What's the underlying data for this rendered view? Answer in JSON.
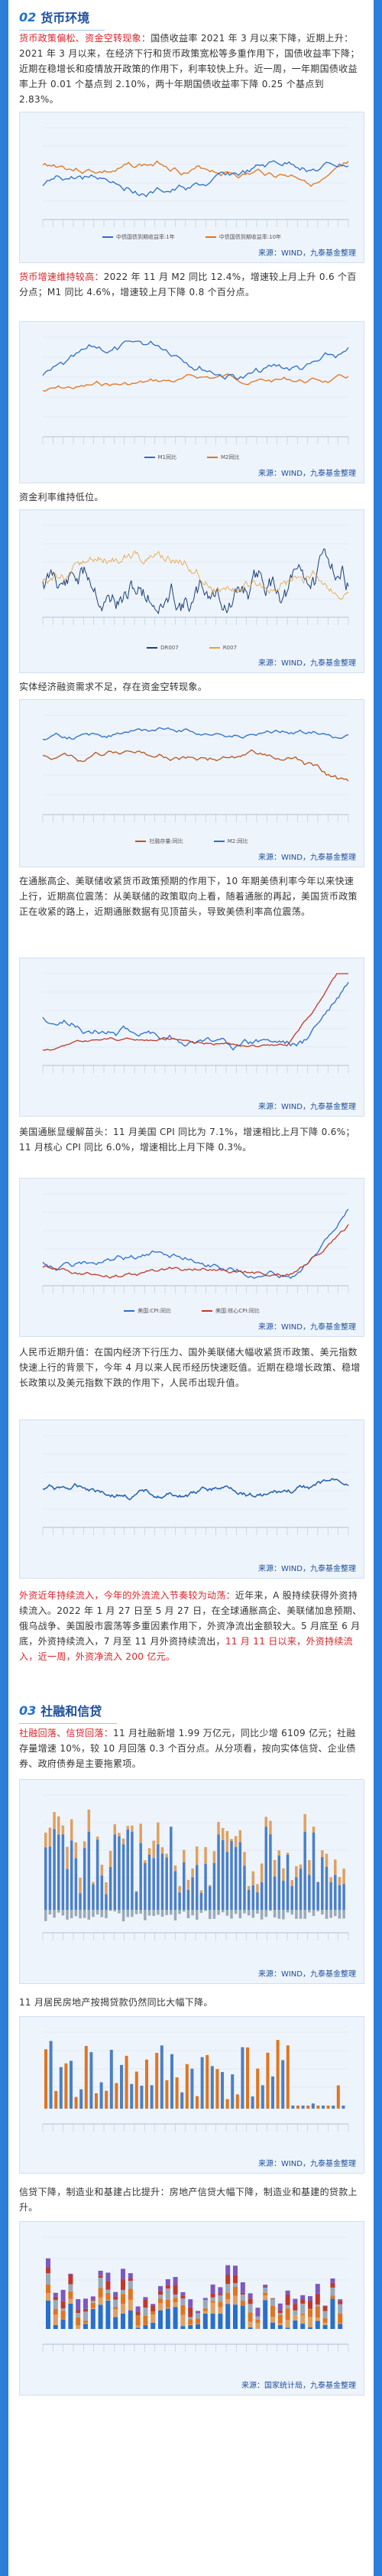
{
  "section2": {
    "num": "02",
    "title": "货币环境"
  },
  "p1": {
    "hl": "货币政策偏松、资金空转现象：",
    "text": "国债收益率 2021 年 3 月以来下降，近期上升：2021 年 3 月以来，在经济下行和货币政策宽松等多重作用下，国债收益率下降；近期在稳增长和疫情放开政策的作用下，利率较快上升。近一周，一年期国债收益率上升 0.01 个基点到 2.10%，两十年期国债收益率下降 0.25 个基点到 2.83%。"
  },
  "chart1": {
    "source": "来源：WIND，九泰基金整理",
    "legend": [
      "中债国债到期收益率:1年",
      "中债国债到期收益率:10年"
    ],
    "colors": [
      "#2a6fc9",
      "#e0751f"
    ]
  },
  "p2": {
    "hl": "货币增速维持较高：",
    "text": "2022 年 11 月 M2 同比 12.4%，增速较上月上升 0.6 个百分点；M1 同比 4.6%，增速较上月下降 0.8 个百分点。"
  },
  "chart2": {
    "source": "来源：WIND，九泰基金整理",
    "legend": [
      "M1同比",
      "M2同比"
    ],
    "colors": [
      "#2a6fc9",
      "#e0751f"
    ]
  },
  "p3": {
    "text": "资金利率维持低位。"
  },
  "chart3": {
    "source": "来源：WIND，九泰基金整理",
    "legend": [
      "DR007",
      "R007"
    ],
    "colors": [
      "#1b3f7a",
      "#e8a13a"
    ]
  },
  "p4": {
    "text": "实体经济融资需求不足，存在资金空转现象。"
  },
  "chart4": {
    "source": "来源：WIND，九泰基金整理",
    "legend": [
      "社融存量:同比",
      "M2:同比"
    ],
    "colors": [
      "#b8561c",
      "#2a6fc9"
    ]
  },
  "p5": {
    "text": "在通胀高企、美联储收紧货币政策预期的作用下，10 年期美债利率今年以来快速上行，近期高位震荡：从美联储的政策取向上看，随着通胀的再起，美国货币政策正在收紧的路上，近期通胀数据有见顶苗头，导致美债利率高位震荡。"
  },
  "chart5": {
    "source": "来源：WIND，九泰基金整理",
    "colors": [
      "#2a6fc9",
      "#c0392b"
    ]
  },
  "p6": {
    "text": "美国通胀显缓解苗头：11 月美国 CPI 同比为 7.1%，增速相比上月下降 0.6%；11 月核心 CPI 同比 6.0%，增速相比上月下降 0.3%。"
  },
  "chart6": {
    "source": "来源：WIND，九泰基金整理",
    "legend": [
      "美国:CPI:同比",
      "美国:核心CPI:同比"
    ],
    "colors": [
      "#2a6fc9",
      "#c0392b"
    ]
  },
  "p7": {
    "text": "人民币近期升值：在国内经济下行压力、国外美联储大幅收紧货币政策、美元指数快速上行的背景下，今年 4 月以来人民币经历快速贬值。近期在稳增长政策、稳增长政策以及美元指数下跌的作用下，人民币出现升值。"
  },
  "chart7": {
    "source": "来源：WIND，九泰基金整理",
    "colors": [
      "#1f5fae"
    ]
  },
  "p8": {
    "hl1": "外资近年持续流入，今年的外流流入节奏较为动荡：",
    "text1": "近年来，A 股持续获得外资持续流入。2022 年 1 月 27 日至 5 月 27 日，在全球通胀高企、美联储加息预期、俄乌战争、美国股市震荡等多重因素作用下，外资净流出金额较大。5 月底至 6 月底，外资持续流入，7 月至 11 月外资持续流出，",
    "hl2": "11 月 11 日以来，外资持续流入，近一周，外资净流入 200 亿元。"
  },
  "section3": {
    "num": "03",
    "title": "社融和信贷"
  },
  "p9": {
    "hl": "社融回落、信贷回落：",
    "text": "11 月社融新增 1.99 万亿元，同比少增 6109 亿元；社融存量增速 10%，较 10 月回落 0.3 个百分点。从分项看，按向实体信贷、企业债券、政府债券是主要拖累项。"
  },
  "chart9": {
    "source": "来源：WIND，九泰基金整理",
    "colors": [
      "#4a7fc9",
      "#e0a060",
      "#9aa9b8"
    ]
  },
  "p10": {
    "text": "11 月居民房地产按揭贷款仍然同比大幅下降。"
  },
  "chart10": {
    "source": "来源：WIND，九泰基金整理",
    "colors": [
      "#4a7fc9",
      "#e0751f"
    ]
  },
  "p11": {
    "text": "信贷下降，制造业和基建占比提升：房地产信贷大幅下降，制造业和基建的贷款上升。"
  },
  "chart11": {
    "source": "来源：国家统计局，九泰基金整理",
    "colors": [
      "#2a6fc9",
      "#e0a060",
      "#e0751f",
      "#9aa9b8",
      "#c0392b",
      "#7e57c2"
    ]
  }
}
